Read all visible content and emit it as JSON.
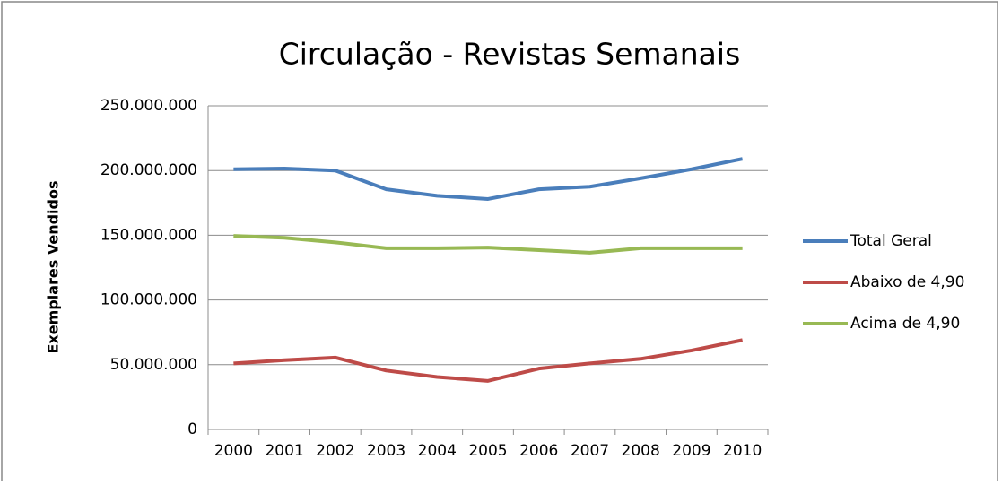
{
  "chart_data": {
    "type": "line",
    "title": "Circulação - Revistas Semanais",
    "y_label": "Exemplares Vendidos",
    "categories": [
      "2000",
      "2001",
      "2002",
      "2003",
      "2004",
      "2005",
      "2006",
      "2007",
      "2008",
      "2009",
      "2010"
    ],
    "series": [
      {
        "name": "Total Geral",
        "color": "#4a7ebb",
        "values": [
          201000000,
          201500000,
          200000000,
          185500000,
          180500000,
          178000000,
          185500000,
          187500000,
          194000000,
          201000000,
          209000000
        ]
      },
      {
        "name": "Abaixo de 4,90",
        "color": "#be4b48",
        "values": [
          51000000,
          53500000,
          55500000,
          45500000,
          40500000,
          37500000,
          47000000,
          51000000,
          54500000,
          61000000,
          69000000
        ]
      },
      {
        "name": "Acima de 4,90",
        "color": "#98b954",
        "values": [
          149500000,
          148000000,
          144500000,
          140000000,
          140000000,
          140500000,
          138500000,
          136500000,
          140000000,
          140000000,
          140000000
        ]
      }
    ],
    "ylim": [
      0,
      250000000
    ],
    "yticks": [
      0,
      {
        "value": 50000000,
        "label": "50.000.000"
      },
      {
        "value": 100000000,
        "label": "100.000.000"
      },
      {
        "value": 150000000,
        "label": "150.000.000"
      },
      {
        "value": 200000000,
        "label": "200.000.000"
      },
      {
        "value": 250000000,
        "label": "250.000.000"
      }
    ],
    "grid": true,
    "legend": "right"
  }
}
